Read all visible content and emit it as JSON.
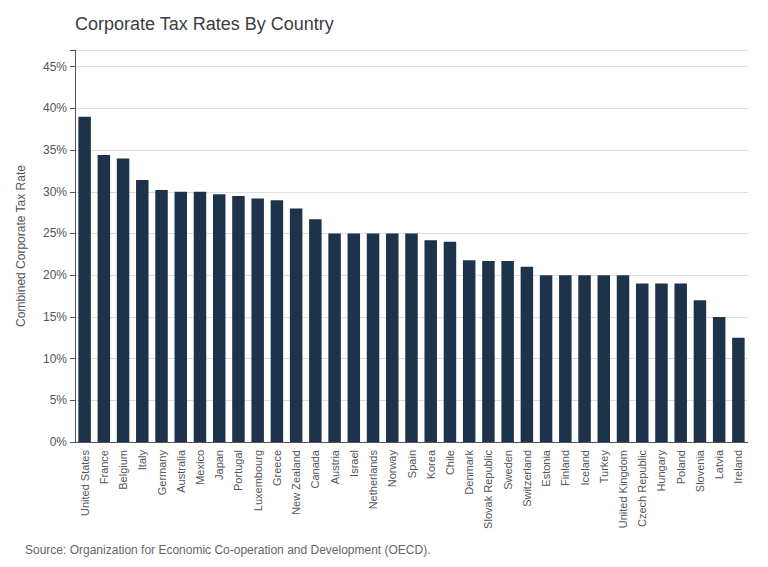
{
  "chart_data": {
    "type": "bar",
    "title": "Corporate Tax Rates By Country",
    "ylabel": "Combined Corporate Tax Rate",
    "source": "Source: Organization for Economic Co-operation and Development (OECD).",
    "color": "#1d3349",
    "categories": [
      "United States",
      "France",
      "Belgium",
      "Italy",
      "Germany",
      "Australia",
      "Mexico",
      "Japan",
      "Portugal",
      "Luxembourg",
      "Greece",
      "New Zealand",
      "Canada",
      "Austria",
      "Israel",
      "Netherlands",
      "Norway",
      "Spain",
      "Korea",
      "Chile",
      "Denmark",
      "Slovak Republic",
      "Sweden",
      "Switzerland",
      "Estonia",
      "Finland",
      "Iceland",
      "Turkey",
      "United Kingdom",
      "Czech Republic",
      "Hungary",
      "Poland",
      "Slovenia",
      "Latvia",
      "Ireland"
    ],
    "values": [
      39.0,
      34.4,
      34.0,
      31.4,
      30.2,
      30.0,
      30.0,
      29.7,
      29.5,
      29.2,
      29.0,
      28.0,
      26.7,
      25.0,
      25.0,
      25.0,
      25.0,
      25.0,
      24.2,
      24.0,
      21.8,
      21.7,
      21.7,
      21.0,
      20.0,
      20.0,
      20.0,
      20.0,
      20.0,
      19.0,
      19.0,
      19.0,
      17.0,
      15.0,
      12.5
    ],
    "ylim": [
      0,
      47
    ],
    "yticks": [
      {
        "value": 0,
        "label": "0%"
      },
      {
        "value": 5,
        "label": "5%"
      },
      {
        "value": 10,
        "label": "10%"
      },
      {
        "value": 15,
        "label": "15%"
      },
      {
        "value": 20,
        "label": "20%"
      },
      {
        "value": 25,
        "label": "25%"
      },
      {
        "value": 30,
        "label": "30%"
      },
      {
        "value": 35,
        "label": "35%"
      },
      {
        "value": 40,
        "label": "40%"
      },
      {
        "value": 45,
        "label": "45%"
      }
    ],
    "grid": true
  }
}
